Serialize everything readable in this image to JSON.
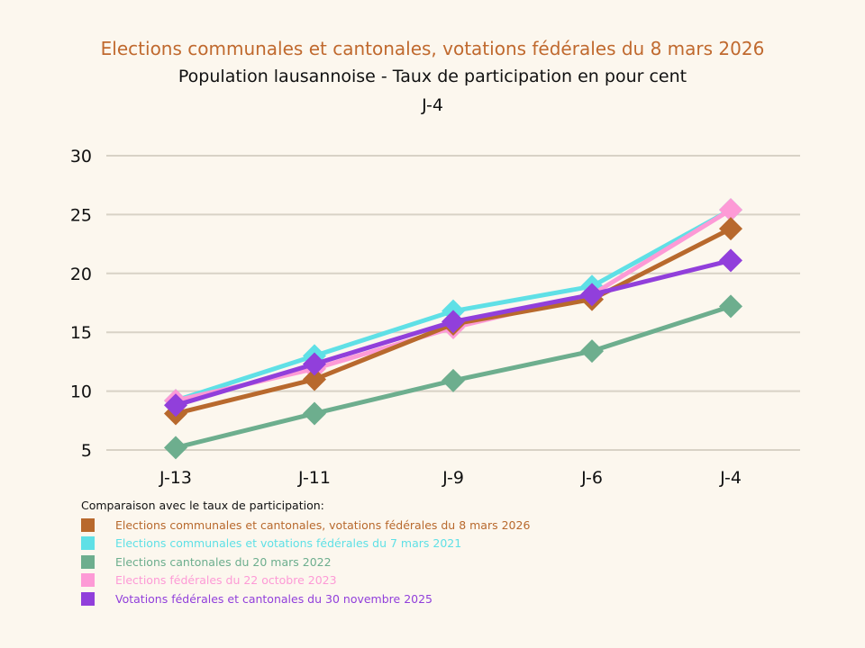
{
  "chart_data": {
    "type": "line",
    "title": "Elections communales et cantonales, votations fédérales du 8 mars 2026",
    "subtitle": "Population lausannoise - Taux de participation en pour cent",
    "subtitle2": "J-4",
    "xlabel": "",
    "ylabel": "",
    "categories": [
      "J-13",
      "J-11",
      "J-9",
      "J-6",
      "J-4"
    ],
    "ylim": [
      5,
      30
    ],
    "yticks": [
      5,
      10,
      15,
      20,
      25,
      30
    ],
    "grid": true,
    "legend_position": "bottom",
    "legend_title": "Comparaison avec le taux de participation:",
    "series": [
      {
        "name": "Elections communales et votations fédérales du 7 mars 2021",
        "color": "#5fe0e6",
        "values": [
          9.2,
          13.0,
          16.8,
          18.9,
          25.4
        ]
      },
      {
        "name": "Elections cantonales du 20 mars 2022",
        "color": "#6dae8e",
        "values": [
          5.2,
          8.1,
          10.9,
          13.4,
          17.2
        ]
      },
      {
        "name": "Elections fédérales du 22 octobre 2023",
        "color": "#fd9ad6",
        "values": [
          9.2,
          11.9,
          15.4,
          18.2,
          25.4
        ]
      },
      {
        "name": "Elections communales et cantonales, votations fédérales du 8 mars 2026",
        "color": "#b8692d",
        "values": [
          8.1,
          11.0,
          15.7,
          17.8,
          23.8
        ]
      },
      {
        "name": "Votations fédérales et cantonales du 30 novembre 2025",
        "color": "#913fdb",
        "values": [
          8.8,
          12.3,
          15.9,
          18.2,
          21.1
        ]
      }
    ],
    "legend_order": [
      3,
      0,
      1,
      2,
      4
    ]
  }
}
